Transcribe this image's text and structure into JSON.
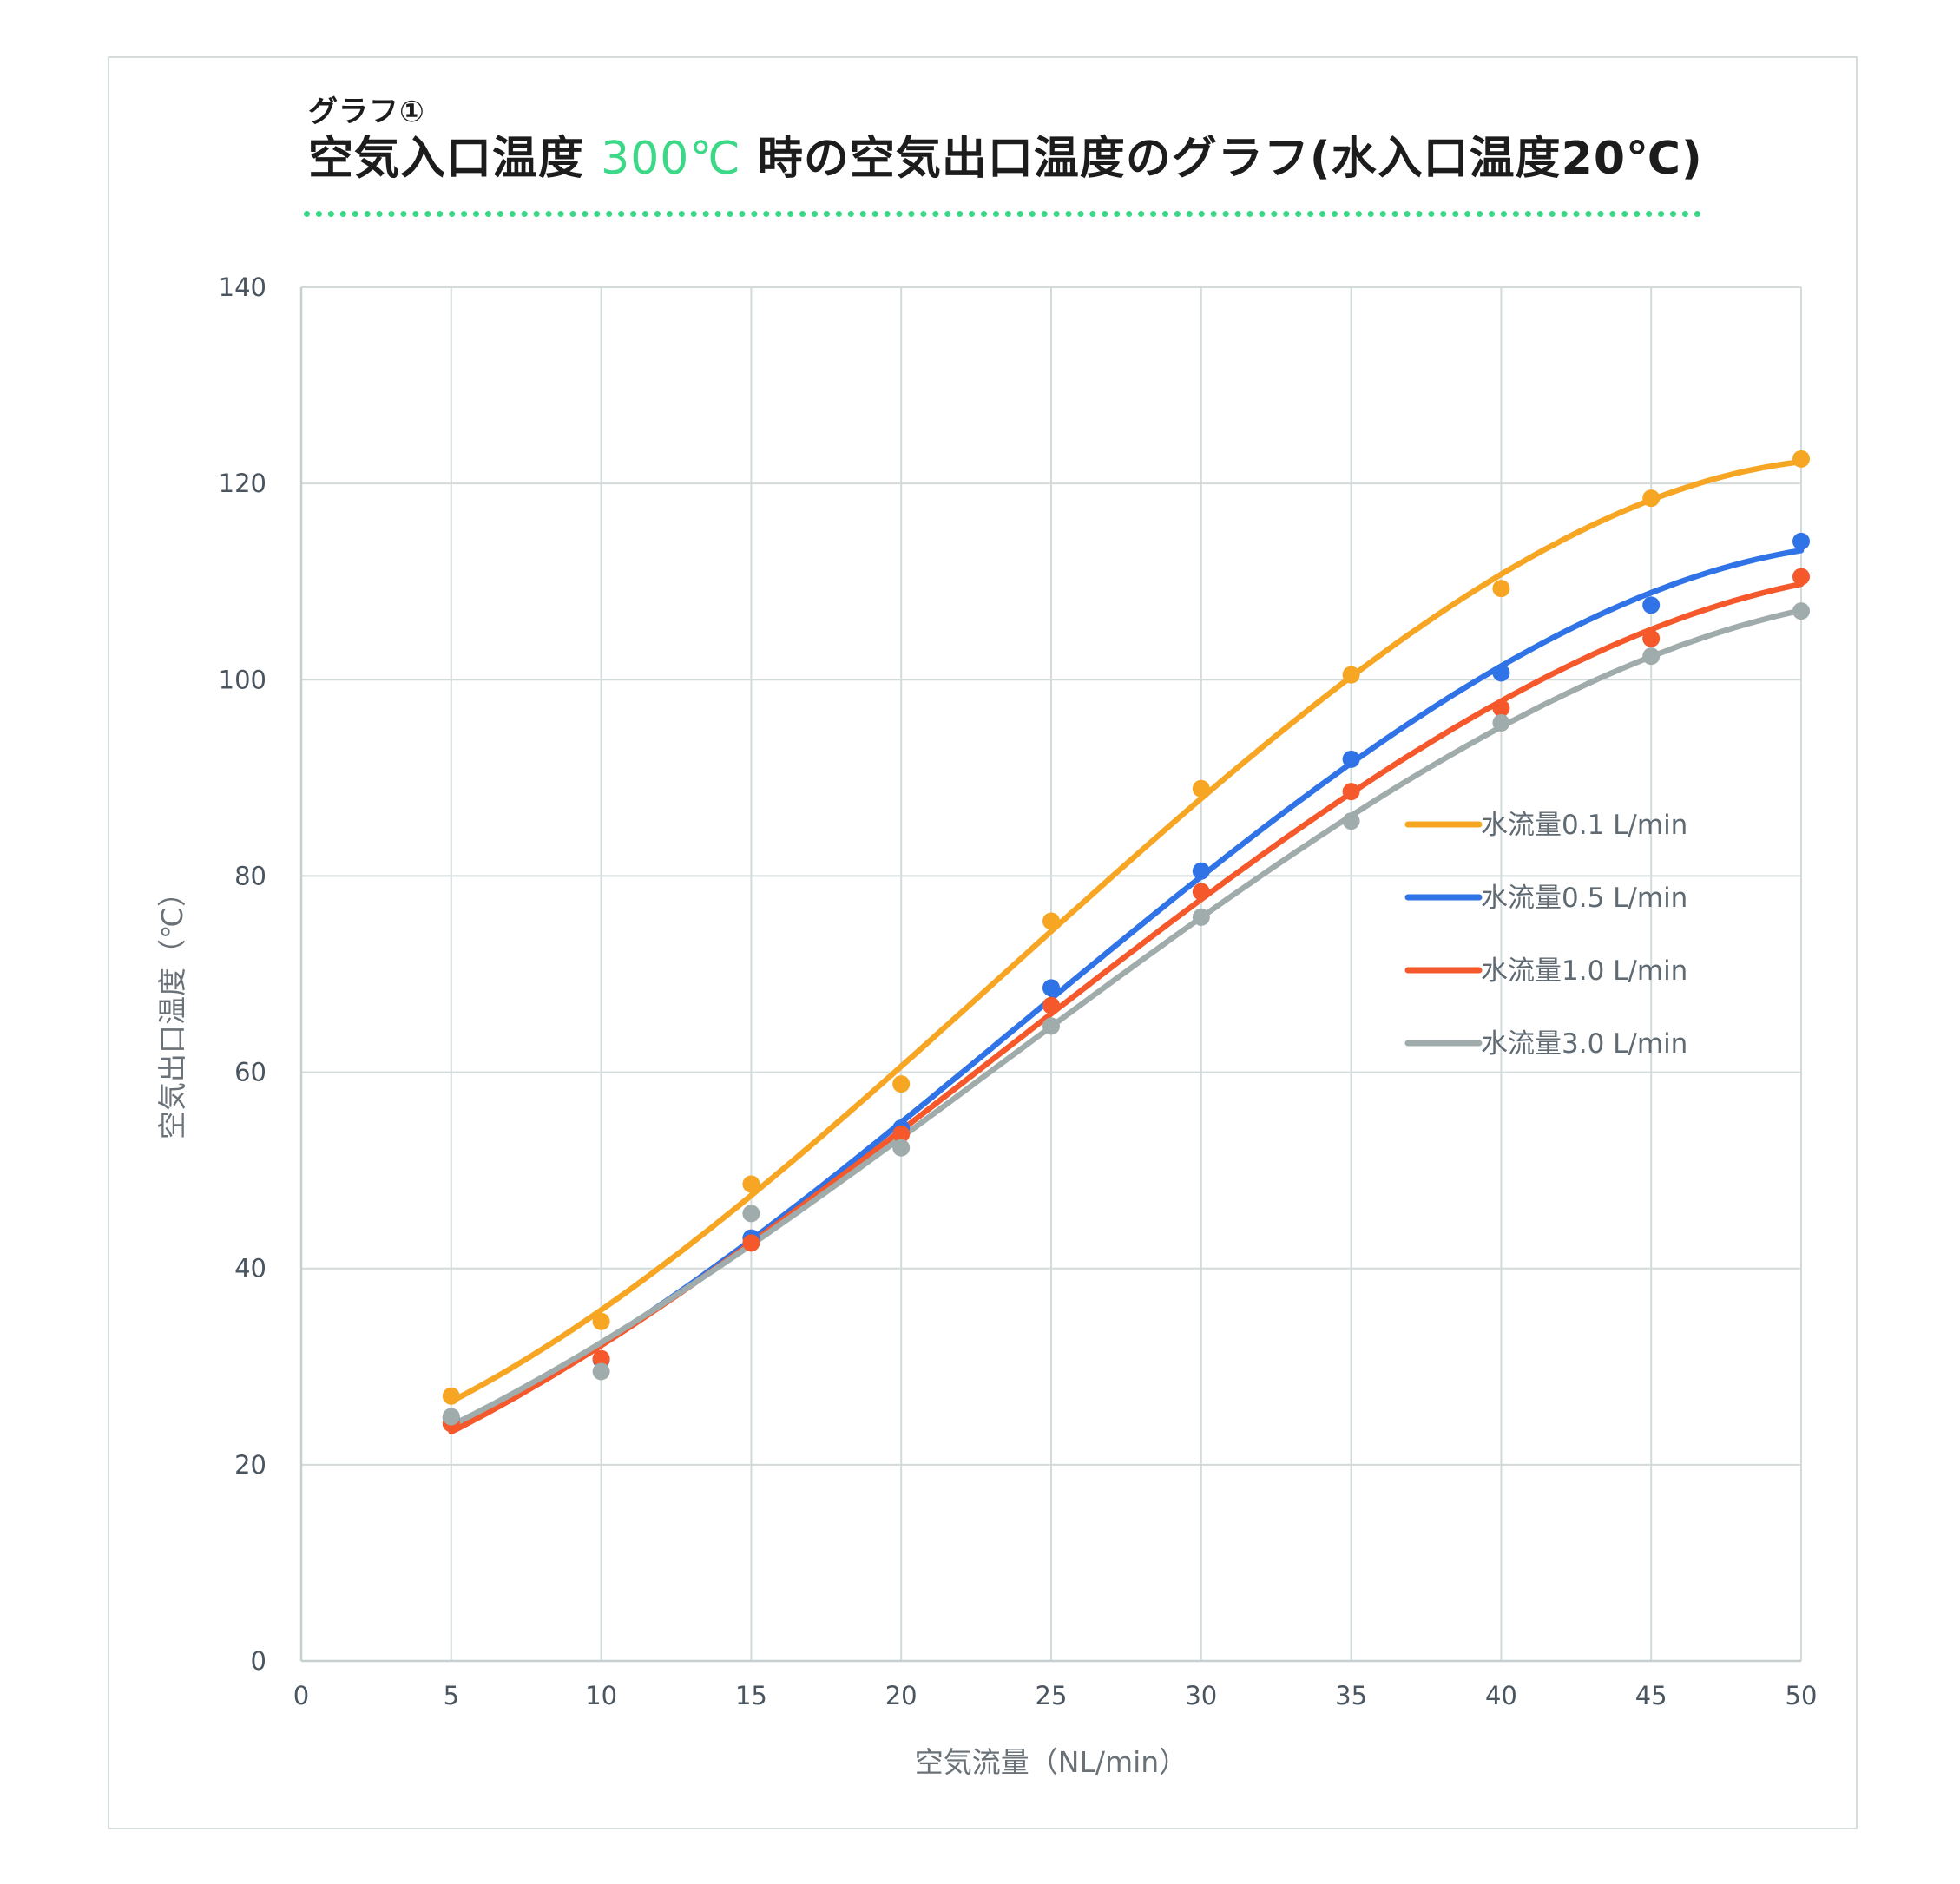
{
  "header": {
    "subtitle": "グラフ①",
    "title_before": "空気入口温度 ",
    "title_accent": "300℃",
    "title_after": " 時の空気出口温度のグラフ(水入口温度20℃)"
  },
  "colors": {
    "accent": "#3ad887",
    "grid": "#d3dada",
    "series": [
      "#f6a623",
      "#2f73e6",
      "#f5582b",
      "#a0acab"
    ]
  },
  "chart_data": {
    "type": "scatter",
    "xlabel": "空気流量（NL/min）",
    "ylabel": "空気出口温度（℃）",
    "xlim": [
      0,
      50
    ],
    "ylim": [
      0,
      140
    ],
    "x_ticks": [
      "0",
      "5",
      "10",
      "15",
      "20",
      "25",
      "30",
      "35",
      "40",
      "45",
      "50"
    ],
    "y_ticks": [
      "0",
      "20",
      "40",
      "60",
      "80",
      "100",
      "120",
      "140"
    ],
    "grid": true,
    "legend": "right",
    "trendline": "polynomial",
    "x": [
      5,
      10,
      15,
      20,
      25,
      30,
      35,
      40,
      45,
      50
    ],
    "series": [
      {
        "name": "水流量0.1 L/min",
        "values": [
          27.0,
          34.6,
          48.6,
          58.8,
          75.4,
          88.9,
          100.5,
          109.3,
          118.5,
          122.5
        ]
      },
      {
        "name": "水流量0.5 L/min",
        "values": [
          24.8,
          30.7,
          43.1,
          54.3,
          68.6,
          80.5,
          91.9,
          100.7,
          107.6,
          114.1
        ]
      },
      {
        "name": "水流量1.0 L/min",
        "values": [
          24.2,
          30.8,
          42.6,
          53.7,
          66.8,
          78.4,
          88.6,
          97.1,
          104.2,
          110.5
        ]
      },
      {
        "name": "水流量3.0 L/min",
        "values": [
          24.9,
          29.5,
          45.6,
          52.3,
          64.7,
          75.8,
          85.6,
          95.6,
          102.4,
          107.0
        ]
      }
    ]
  }
}
